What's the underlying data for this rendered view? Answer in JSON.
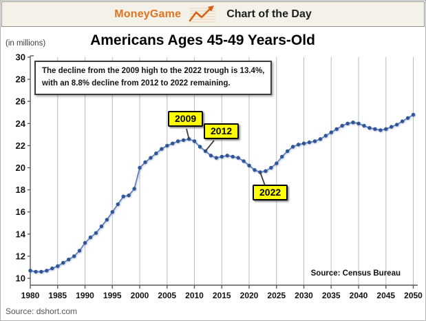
{
  "header": {
    "brand": "MoneyGame",
    "title": "Chart of the Day",
    "icon": "line-chart-up-icon",
    "brand_color": "#e0731d"
  },
  "chart": {
    "title": "Americans Ages 45-49 Years-Old",
    "y_axis_note": "(in millions)",
    "annotation": {
      "line1": "The decline from the 2009 high to the 2022 trough is 13.4%,",
      "line2": "with an 8.8% decline from 2012 to 2022 remaining."
    },
    "callouts": [
      {
        "label": "2009",
        "year": 2009,
        "value": 22.6
      },
      {
        "label": "2012",
        "year": 2012,
        "value": 21.5
      },
      {
        "label": "2022",
        "year": 2022,
        "value": 19.6
      }
    ],
    "source_inside": "Source: Census Bureau"
  },
  "chart_data": {
    "type": "line",
    "title": "Americans Ages 45-49 Years-Old",
    "ylabel": "(in millions)",
    "xlabel": "",
    "xlim": [
      1980,
      2050
    ],
    "ylim": [
      10,
      30
    ],
    "x_ticks": [
      1980,
      1985,
      1990,
      1995,
      2000,
      2005,
      2010,
      2015,
      2020,
      2025,
      2030,
      2035,
      2040,
      2045,
      2050
    ],
    "y_ticks": [
      10,
      12,
      14,
      16,
      18,
      20,
      22,
      24,
      26,
      28,
      30
    ],
    "grid": "vertical-only",
    "legend": "none",
    "marker": "circle",
    "line_color": "#5579bd",
    "marker_color": "#2f5598",
    "x": [
      1980,
      1981,
      1982,
      1983,
      1984,
      1985,
      1986,
      1987,
      1988,
      1989,
      1990,
      1991,
      1992,
      1993,
      1994,
      1995,
      1996,
      1997,
      1998,
      1999,
      2000,
      2001,
      2002,
      2003,
      2004,
      2005,
      2006,
      2007,
      2008,
      2009,
      2010,
      2011,
      2012,
      2013,
      2014,
      2015,
      2016,
      2017,
      2018,
      2019,
      2020,
      2021,
      2022,
      2023,
      2024,
      2025,
      2026,
      2027,
      2028,
      2029,
      2030,
      2031,
      2032,
      2033,
      2034,
      2035,
      2036,
      2037,
      2038,
      2039,
      2040,
      2041,
      2042,
      2043,
      2044,
      2045,
      2046,
      2047,
      2048,
      2049,
      2050
    ],
    "values": [
      10.7,
      10.6,
      10.6,
      10.7,
      10.9,
      11.1,
      11.4,
      11.7,
      12.0,
      12.5,
      13.2,
      13.7,
      14.1,
      14.7,
      15.3,
      16.0,
      16.7,
      17.4,
      17.5,
      18.1,
      20.0,
      20.5,
      20.9,
      21.3,
      21.7,
      22.0,
      22.2,
      22.4,
      22.5,
      22.6,
      22.4,
      21.9,
      21.5,
      21.1,
      20.9,
      21.0,
      21.1,
      21.0,
      20.9,
      20.6,
      20.2,
      19.8,
      19.6,
      19.7,
      20.0,
      20.4,
      21.0,
      21.5,
      21.9,
      22.1,
      22.2,
      22.3,
      22.4,
      22.6,
      22.9,
      23.2,
      23.5,
      23.8,
      24.0,
      24.1,
      24.0,
      23.8,
      23.6,
      23.5,
      23.4,
      23.5,
      23.7,
      23.9,
      24.2,
      24.5,
      24.8
    ],
    "annotations": [
      "2009 high",
      "2012",
      "2022 trough"
    ],
    "source": "Source: Census Bureau"
  },
  "footer": {
    "source": "Source: dshort.com"
  }
}
